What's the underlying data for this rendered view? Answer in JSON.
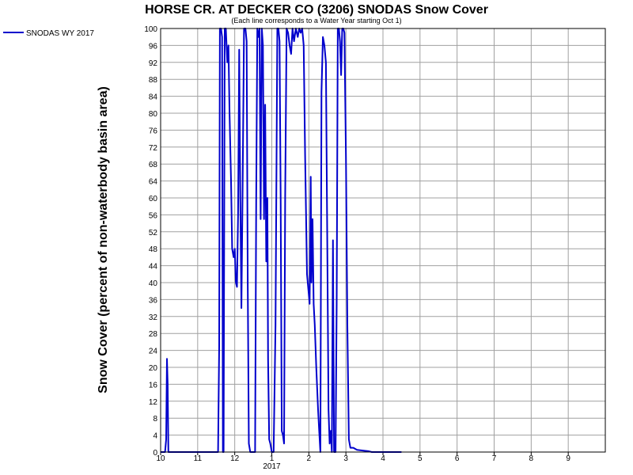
{
  "chart_data": {
    "type": "line",
    "title": "HORSE CR. AT DECKER CO (3206) SNODAS Snow Cover",
    "subtitle": "(Each line corresponds to a Water Year starting Oct 1)",
    "ylabel": "Snow Cover (percent of non-waterbody basin area)",
    "xlabel": "",
    "ylim": [
      0,
      100
    ],
    "yticks": [
      0,
      4,
      8,
      12,
      16,
      20,
      24,
      28,
      32,
      36,
      40,
      44,
      48,
      52,
      56,
      60,
      64,
      68,
      72,
      76,
      80,
      84,
      88,
      92,
      96,
      100
    ],
    "xlim": [
      10,
      10.9
    ],
    "x_unit": "month (fractional, month 10 = Oct 2016 start; values > 12 continue into 2017 as 13 = Jan)",
    "xticks": [
      {
        "v": 10,
        "label": "10"
      },
      {
        "v": 11,
        "label": "11"
      },
      {
        "v": 12,
        "label": "12"
      },
      {
        "v": 13,
        "label": "1"
      },
      {
        "v": 14,
        "label": "2"
      },
      {
        "v": 15,
        "label": "3"
      },
      {
        "v": 16,
        "label": "4"
      },
      {
        "v": 17,
        "label": "5"
      },
      {
        "v": 18,
        "label": "6"
      },
      {
        "v": 19,
        "label": "7"
      },
      {
        "v": 20,
        "label": "8"
      },
      {
        "v": 21,
        "label": "9"
      }
    ],
    "xrange": [
      10,
      22
    ],
    "year_label": {
      "v": 13,
      "label": "2017"
    },
    "grid": true,
    "legend_position": "top-left",
    "series": [
      {
        "name": "SNODAS WY 2017",
        "color": "#0000cc",
        "points": [
          [
            10.0,
            0
          ],
          [
            10.12,
            0
          ],
          [
            10.15,
            3
          ],
          [
            10.17,
            22
          ],
          [
            10.19,
            16
          ],
          [
            10.21,
            0
          ],
          [
            10.5,
            0
          ],
          [
            11.0,
            0
          ],
          [
            11.4,
            0
          ],
          [
            11.55,
            0
          ],
          [
            11.58,
            25
          ],
          [
            11.6,
            100
          ],
          [
            11.63,
            100
          ],
          [
            11.66,
            98
          ],
          [
            11.68,
            0
          ],
          [
            11.7,
            0
          ],
          [
            11.73,
            100
          ],
          [
            11.76,
            100
          ],
          [
            11.8,
            92
          ],
          [
            11.83,
            96
          ],
          [
            11.86,
            80
          ],
          [
            11.9,
            64
          ],
          [
            11.93,
            48
          ],
          [
            11.97,
            46
          ],
          [
            12.0,
            48
          ],
          [
            12.03,
            40
          ],
          [
            12.06,
            39
          ],
          [
            12.09,
            56
          ],
          [
            12.12,
            95
          ],
          [
            12.15,
            60
          ],
          [
            12.18,
            34
          ],
          [
            12.21,
            60
          ],
          [
            12.25,
            100
          ],
          [
            12.29,
            100
          ],
          [
            12.32,
            97
          ],
          [
            12.35,
            40
          ],
          [
            12.38,
            2
          ],
          [
            12.42,
            0
          ],
          [
            12.55,
            0
          ],
          [
            12.58,
            60
          ],
          [
            12.61,
            100
          ],
          [
            12.64,
            98
          ],
          [
            12.67,
            100
          ],
          [
            12.7,
            55
          ],
          [
            12.73,
            100
          ],
          [
            12.76,
            96
          ],
          [
            12.79,
            55
          ],
          [
            12.82,
            82
          ],
          [
            12.85,
            45
          ],
          [
            12.88,
            60
          ],
          [
            12.9,
            22
          ],
          [
            12.93,
            3
          ],
          [
            12.96,
            2
          ],
          [
            13.0,
            0
          ],
          [
            13.05,
            0
          ],
          [
            13.1,
            30
          ],
          [
            13.15,
            100
          ],
          [
            13.18,
            100
          ],
          [
            13.21,
            97
          ],
          [
            13.24,
            60
          ],
          [
            13.27,
            5
          ],
          [
            13.3,
            4
          ],
          [
            13.33,
            2
          ],
          [
            13.36,
            60
          ],
          [
            13.4,
            100
          ],
          [
            13.44,
            99
          ],
          [
            13.48,
            96
          ],
          [
            13.52,
            94
          ],
          [
            13.56,
            100
          ],
          [
            13.6,
            97
          ],
          [
            13.65,
            100
          ],
          [
            13.7,
            98
          ],
          [
            13.74,
            100
          ],
          [
            13.78,
            99
          ],
          [
            13.82,
            100
          ],
          [
            13.86,
            96
          ],
          [
            13.9,
            70
          ],
          [
            13.95,
            42
          ],
          [
            13.99,
            38
          ],
          [
            14.02,
            35
          ],
          [
            14.05,
            65
          ],
          [
            14.07,
            40
          ],
          [
            14.1,
            55
          ],
          [
            14.13,
            35
          ],
          [
            14.16,
            30
          ],
          [
            14.2,
            20
          ],
          [
            14.25,
            10
          ],
          [
            14.28,
            5
          ],
          [
            14.31,
            0
          ],
          [
            14.34,
            85
          ],
          [
            14.38,
            98
          ],
          [
            14.42,
            96
          ],
          [
            14.46,
            92
          ],
          [
            14.5,
            45
          ],
          [
            14.53,
            10
          ],
          [
            14.56,
            2
          ],
          [
            14.59,
            5
          ],
          [
            14.62,
            0
          ],
          [
            14.65,
            50
          ],
          [
            14.68,
            0
          ],
          [
            14.72,
            0
          ],
          [
            14.75,
            35
          ],
          [
            14.78,
            100
          ],
          [
            14.81,
            100
          ],
          [
            14.84,
            97
          ],
          [
            14.87,
            89
          ],
          [
            14.9,
            100
          ],
          [
            14.93,
            100
          ],
          [
            14.96,
            99
          ],
          [
            15.0,
            70
          ],
          [
            15.04,
            30
          ],
          [
            15.08,
            3
          ],
          [
            15.12,
            1
          ],
          [
            15.2,
            1
          ],
          [
            15.3,
            0.5
          ],
          [
            15.5,
            0.3
          ],
          [
            15.6,
            0.2
          ],
          [
            15.7,
            0
          ],
          [
            16.0,
            0
          ],
          [
            16.5,
            0
          ]
        ]
      }
    ]
  }
}
